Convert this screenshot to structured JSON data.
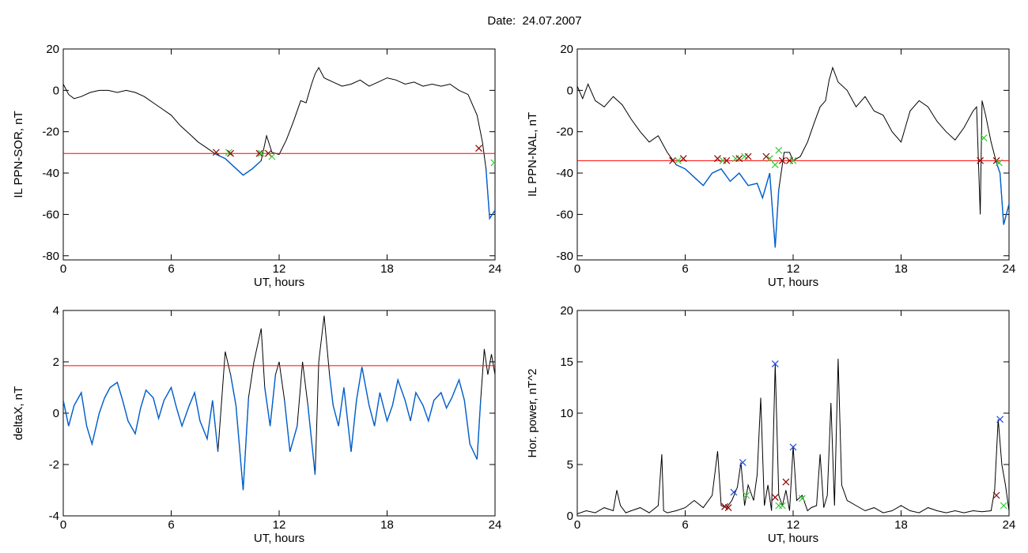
{
  "page": {
    "title": "Date:  24.07.2007"
  },
  "colors": {
    "trace": "#000000",
    "threshold": "#ff0000",
    "below_threshold": "#0060d0",
    "marker_start": "#33cc33",
    "marker_end": "#8b0000",
    "marker_peak": "#1e4fd8"
  },
  "chart_data": [
    {
      "id": "ppn-sor",
      "type": "line",
      "title": "",
      "xlabel": "UT, hours",
      "ylabel": "IL PPN-SOR, nT",
      "xlim": [
        0,
        24
      ],
      "ylim": [
        -82,
        20
      ],
      "xticks": [
        0,
        6,
        12,
        18,
        24
      ],
      "yticks": [
        20,
        0,
        -20,
        -40,
        -60,
        -80
      ],
      "threshold": -30.5,
      "series": [
        {
          "x": [
            0,
            0.3,
            0.6,
            1,
            1.5,
            2,
            2.5,
            3,
            3.5,
            4,
            4.5,
            5,
            5.5,
            6,
            6.5,
            7,
            7.5,
            8,
            8.5,
            9,
            9.5,
            10,
            10.5,
            11,
            11.3,
            11.6,
            12,
            12.4,
            12.8,
            13.2,
            13.5,
            13.8,
            14,
            14.2,
            14.5,
            15,
            15.5,
            16,
            16.5,
            17,
            17.5,
            18,
            18.5,
            19,
            19.5,
            20,
            20.5,
            21,
            21.5,
            22,
            22.5,
            23,
            23.3,
            23.5,
            23.7,
            24
          ],
          "y": [
            3,
            -2,
            -4,
            -3,
            -1,
            0,
            0,
            -1,
            0,
            -1,
            -3,
            -6,
            -9,
            -12,
            -17,
            -21,
            -25,
            -28,
            -31,
            -33,
            -37,
            -41,
            -38,
            -34,
            -22,
            -30,
            -31,
            -24,
            -15,
            -5,
            -6,
            3,
            8,
            11,
            6,
            4,
            2,
            3,
            5,
            2,
            4,
            6,
            5,
            3,
            4,
            2,
            3,
            2,
            3,
            0,
            -2,
            -12,
            -25,
            -38,
            -62,
            -58
          ]
        }
      ],
      "markers": [
        {
          "x": 8.5,
          "y": -30,
          "kind": "end"
        },
        {
          "x": 9.2,
          "y": -30,
          "kind": "start"
        },
        {
          "x": 9.3,
          "y": -30.5,
          "kind": "end"
        },
        {
          "x": 10.9,
          "y": -30.5,
          "kind": "end"
        },
        {
          "x": 11.0,
          "y": -30.5,
          "kind": "start"
        },
        {
          "x": 11.4,
          "y": -30.5,
          "kind": "end"
        },
        {
          "x": 11.6,
          "y": -32,
          "kind": "start"
        },
        {
          "x": 23.1,
          "y": -28,
          "kind": "end"
        },
        {
          "x": 23.95,
          "y": -35,
          "kind": "start"
        }
      ]
    },
    {
      "id": "ppn-nal",
      "type": "line",
      "title": "",
      "xlabel": "UT, hours",
      "ylabel": "IL PPN-NAL, nT",
      "xlim": [
        0,
        24
      ],
      "ylim": [
        -82,
        20
      ],
      "xticks": [
        0,
        6,
        12,
        18,
        24
      ],
      "yticks": [
        20,
        0,
        -20,
        -40,
        -60,
        -80
      ],
      "threshold": -34,
      "series": [
        {
          "x": [
            0,
            0.3,
            0.6,
            1,
            1.5,
            2,
            2.5,
            3,
            3.5,
            4,
            4.5,
            5,
            5.5,
            6,
            6.5,
            7,
            7.5,
            8,
            8.5,
            9,
            9.5,
            10,
            10.3,
            10.7,
            11,
            11.2,
            11.5,
            11.8,
            12,
            12.4,
            12.8,
            13.2,
            13.5,
            13.8,
            14,
            14.2,
            14.5,
            15,
            15.5,
            16,
            16.5,
            17,
            17.5,
            18,
            18.5,
            19,
            19.5,
            20,
            20.5,
            21,
            21.5,
            22,
            22.2,
            22.4,
            22.5,
            22.7,
            23,
            23.3,
            23.5,
            23.7,
            24
          ],
          "y": [
            2,
            -4,
            3,
            -5,
            -8,
            -3,
            -7,
            -14,
            -20,
            -25,
            -22,
            -30,
            -36,
            -38,
            -42,
            -46,
            -40,
            -38,
            -44,
            -40,
            -46,
            -45,
            -52,
            -40,
            -76,
            -48,
            -30,
            -30,
            -34,
            -32,
            -25,
            -15,
            -8,
            -5,
            5,
            11,
            4,
            0,
            -8,
            -3,
            -10,
            -12,
            -20,
            -25,
            -10,
            -5,
            -8,
            -15,
            -20,
            -24,
            -18,
            -10,
            -8,
            -60,
            -5,
            -12,
            -25,
            -35,
            -40,
            -65,
            -55
          ]
        }
      ],
      "markers": [
        {
          "x": 5.3,
          "y": -34,
          "kind": "end"
        },
        {
          "x": 5.6,
          "y": -34,
          "kind": "start"
        },
        {
          "x": 5.9,
          "y": -33,
          "kind": "end"
        },
        {
          "x": 7.8,
          "y": -33,
          "kind": "end"
        },
        {
          "x": 8.1,
          "y": -34,
          "kind": "start"
        },
        {
          "x": 8.3,
          "y": -34,
          "kind": "end"
        },
        {
          "x": 8.8,
          "y": -33,
          "kind": "start"
        },
        {
          "x": 9.0,
          "y": -33,
          "kind": "end"
        },
        {
          "x": 9.3,
          "y": -32,
          "kind": "start"
        },
        {
          "x": 9.5,
          "y": -32,
          "kind": "end"
        },
        {
          "x": 10.5,
          "y": -32,
          "kind": "end"
        },
        {
          "x": 10.7,
          "y": -33,
          "kind": "start"
        },
        {
          "x": 11.0,
          "y": -36,
          "kind": "start"
        },
        {
          "x": 11.2,
          "y": -29,
          "kind": "start"
        },
        {
          "x": 11.4,
          "y": -34,
          "kind": "end"
        },
        {
          "x": 11.8,
          "y": -34,
          "kind": "end"
        },
        {
          "x": 12.0,
          "y": -34,
          "kind": "start"
        },
        {
          "x": 22.4,
          "y": -34,
          "kind": "end"
        },
        {
          "x": 22.6,
          "y": -23,
          "kind": "start"
        },
        {
          "x": 23.3,
          "y": -34,
          "kind": "end"
        },
        {
          "x": 23.45,
          "y": -35,
          "kind": "start"
        }
      ]
    },
    {
      "id": "deltax",
      "type": "line",
      "title": "",
      "xlabel": "UT, hours",
      "ylabel": "deltaX, nT",
      "xlim": [
        0,
        24
      ],
      "ylim": [
        -4,
        4
      ],
      "xticks": [
        0,
        6,
        12,
        18,
        24
      ],
      "yticks": [
        4,
        2,
        0,
        -2,
        -4
      ],
      "threshold": 1.85,
      "series": [
        {
          "x": [
            0,
            0.3,
            0.6,
            1,
            1.3,
            1.6,
            2,
            2.3,
            2.6,
            3,
            3.3,
            3.6,
            4,
            4.3,
            4.6,
            5,
            5.3,
            5.6,
            6,
            6.3,
            6.6,
            7,
            7.3,
            7.6,
            8,
            8.3,
            8.6,
            9,
            9.3,
            9.6,
            10,
            10.3,
            10.6,
            11,
            11.2,
            11.5,
            11.8,
            12,
            12.3,
            12.6,
            13,
            13.3,
            13.6,
            14,
            14.2,
            14.5,
            14.8,
            15,
            15.3,
            15.6,
            16,
            16.3,
            16.6,
            17,
            17.3,
            17.6,
            18,
            18.3,
            18.6,
            19,
            19.3,
            19.6,
            20,
            20.3,
            20.6,
            21,
            21.3,
            21.6,
            22,
            22.3,
            22.6,
            23,
            23.2,
            23.4,
            23.6,
            23.8,
            24
          ],
          "y": [
            0.5,
            -0.5,
            0.3,
            0.8,
            -0.5,
            -1.2,
            0,
            0.6,
            1,
            1.2,
            0.5,
            -0.3,
            -0.8,
            0.2,
            0.9,
            0.6,
            -0.2,
            0.5,
            1,
            0.2,
            -0.5,
            0.3,
            0.8,
            -0.3,
            -1,
            0.5,
            -1.5,
            2.4,
            1.5,
            0.3,
            -3,
            0.6,
            2,
            3.3,
            1,
            -0.5,
            1.5,
            2,
            0.5,
            -1.5,
            -0.5,
            2,
            0.3,
            -2.4,
            2,
            3.8,
            1.5,
            0.3,
            -0.5,
            1,
            -1.5,
            0.5,
            1.8,
            0.3,
            -0.5,
            0.8,
            -0.3,
            0.3,
            1.3,
            0.5,
            -0.3,
            0.8,
            0.3,
            -0.3,
            0.5,
            0.8,
            0.2,
            0.6,
            1.3,
            0.5,
            -1.2,
            -1.8,
            0.5,
            2.5,
            1.5,
            2.3,
            1.5
          ]
        }
      ],
      "markers": []
    },
    {
      "id": "hor-power",
      "type": "line",
      "title": "",
      "xlabel": "UT, hours",
      "ylabel": "Hor. power, nT^2",
      "xlim": [
        0,
        24
      ],
      "ylim": [
        0,
        20
      ],
      "xticks": [
        0,
        6,
        12,
        18,
        24
      ],
      "yticks": [
        0,
        5,
        10,
        15,
        20
      ],
      "threshold": null,
      "series": [
        {
          "x": [
            0,
            0.5,
            1,
            1.5,
            2,
            2.2,
            2.4,
            2.7,
            3,
            3.5,
            4,
            4.5,
            4.7,
            4.8,
            5,
            5.5,
            6,
            6.5,
            7,
            7.5,
            7.8,
            8,
            8.3,
            8.6,
            8.9,
            9.1,
            9.3,
            9.5,
            9.8,
            10,
            10.2,
            10.4,
            10.6,
            10.8,
            11,
            11.2,
            11.4,
            11.6,
            11.8,
            12,
            12.2,
            12.5,
            12.8,
            13,
            13.3,
            13.5,
            13.7,
            13.9,
            14.1,
            14.3,
            14.5,
            14.7,
            15,
            15.5,
            16,
            16.5,
            17,
            17.5,
            18,
            18.5,
            19,
            19.5,
            20,
            20.5,
            21,
            21.5,
            22,
            22.5,
            23,
            23.2,
            23.4,
            23.6,
            23.8,
            24
          ],
          "y": [
            0.2,
            0.5,
            0.3,
            0.8,
            0.5,
            2.5,
            1,
            0.3,
            0.5,
            0.8,
            0.3,
            1,
            6,
            0.5,
            0.3,
            0.5,
            0.8,
            1.5,
            0.8,
            2,
            6.3,
            1,
            0.8,
            1.5,
            2.8,
            5.2,
            1,
            3,
            1.5,
            4,
            11.5,
            1,
            3,
            0.5,
            14.8,
            2,
            1,
            2.5,
            0.5,
            6.8,
            1.5,
            2,
            0.5,
            0.8,
            1,
            6,
            0.8,
            2,
            11,
            1,
            15.3,
            3,
            1.5,
            1,
            0.5,
            0.8,
            0.3,
            0.5,
            1,
            0.5,
            0.3,
            0.8,
            0.5,
            0.3,
            0.5,
            0.3,
            0.5,
            0.4,
            0.5,
            2.5,
            9.4,
            5,
            3,
            0.5
          ]
        }
      ],
      "markers": [
        {
          "x": 8.2,
          "y": 0.9,
          "kind": "end"
        },
        {
          "x": 8.4,
          "y": 0.8,
          "kind": "end"
        },
        {
          "x": 8.7,
          "y": 2.3,
          "kind": "peak"
        },
        {
          "x": 9.2,
          "y": 5.2,
          "kind": "peak"
        },
        {
          "x": 9.4,
          "y": 2,
          "kind": "start"
        },
        {
          "x": 11.0,
          "y": 14.8,
          "kind": "peak"
        },
        {
          "x": 11.0,
          "y": 1.8,
          "kind": "end"
        },
        {
          "x": 11.2,
          "y": 1.0,
          "kind": "start"
        },
        {
          "x": 11.4,
          "y": 1.0,
          "kind": "start"
        },
        {
          "x": 11.6,
          "y": 3.3,
          "kind": "end"
        },
        {
          "x": 12.0,
          "y": 6.7,
          "kind": "peak"
        },
        {
          "x": 12.5,
          "y": 1.7,
          "kind": "start"
        },
        {
          "x": 23.3,
          "y": 2.0,
          "kind": "end"
        },
        {
          "x": 23.5,
          "y": 9.4,
          "kind": "peak"
        },
        {
          "x": 23.7,
          "y": 1.0,
          "kind": "start"
        }
      ]
    }
  ]
}
